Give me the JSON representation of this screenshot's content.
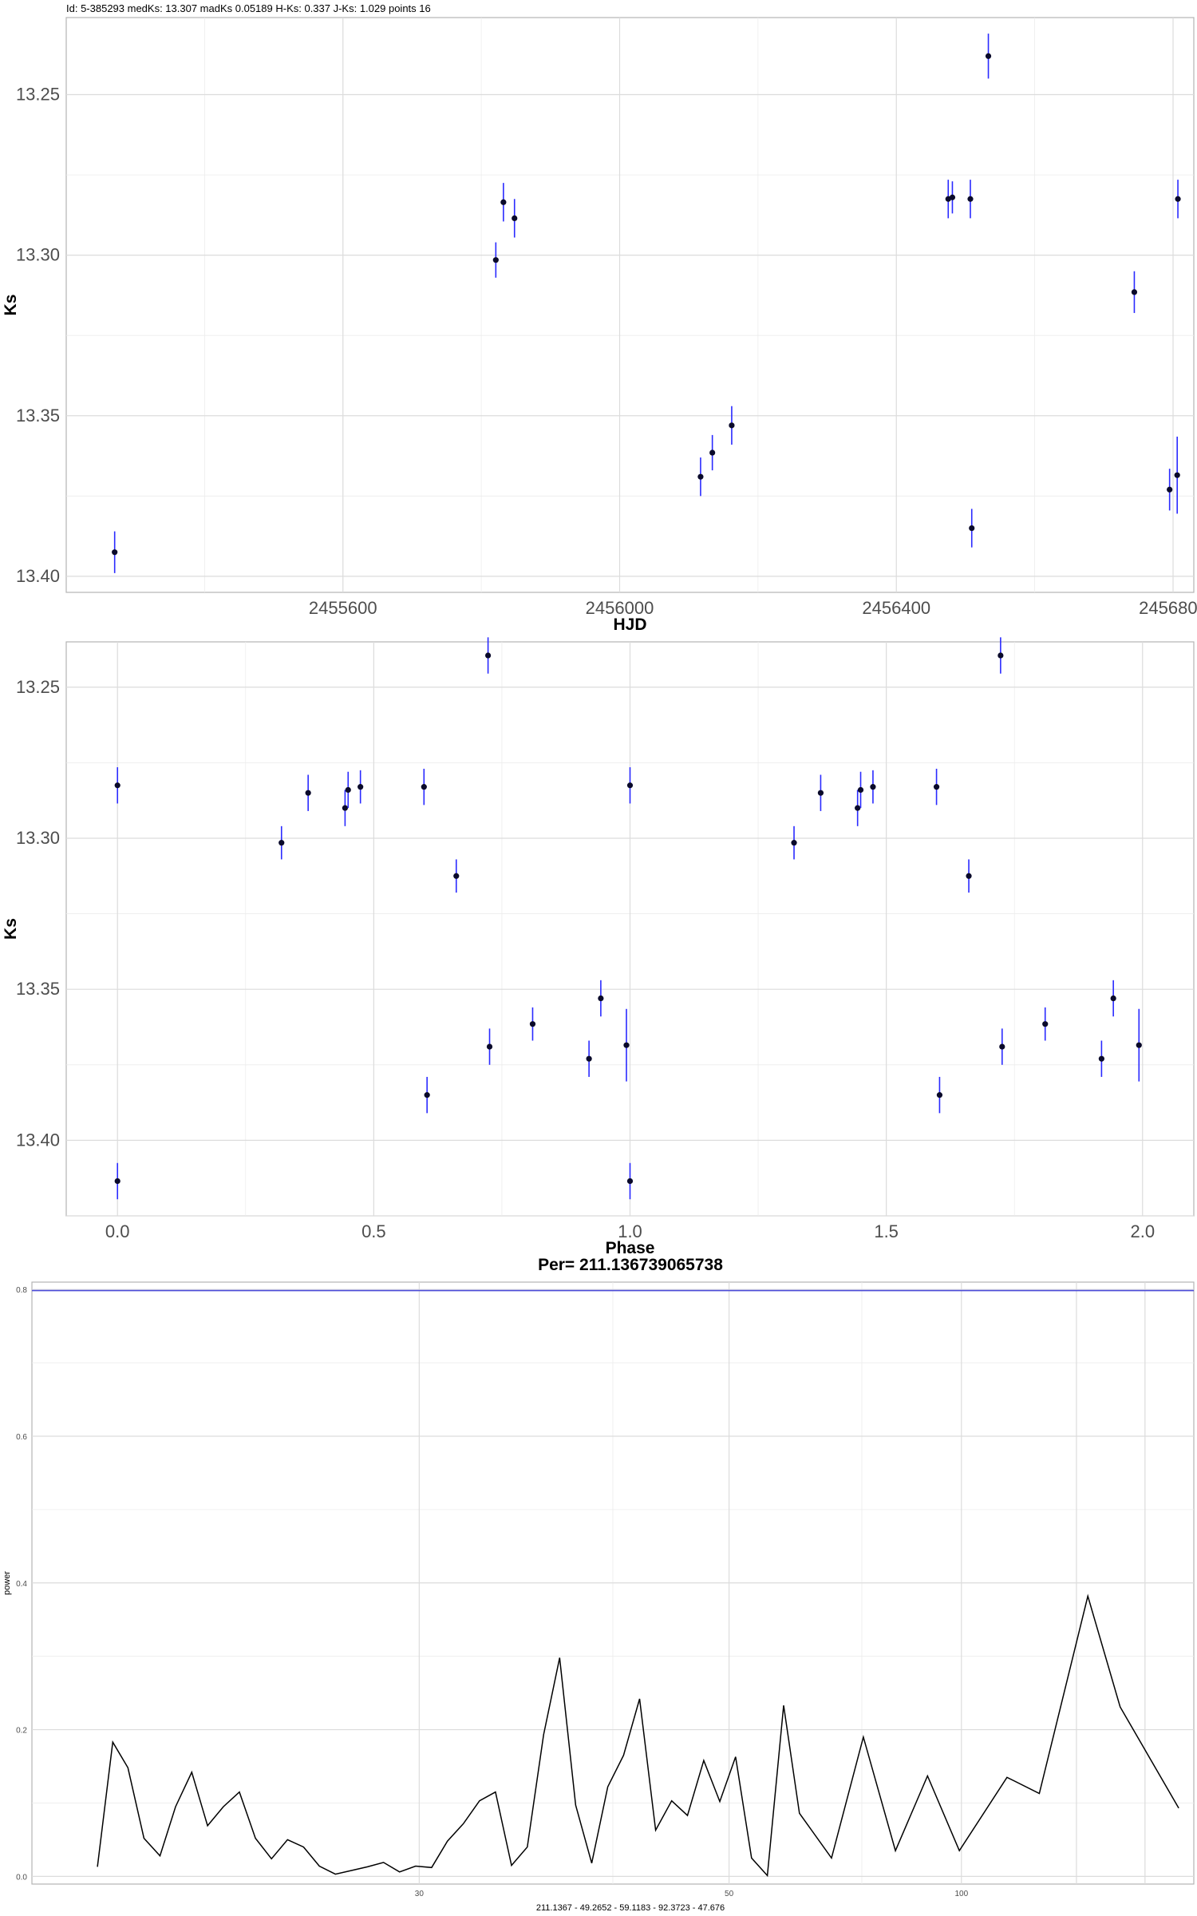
{
  "header": {
    "title": "Id: 5-385293 medKs: 13.307 madKs 0.05189 H-Ks: 0.337 J-Ks: 1.029 points 16"
  },
  "colors": {
    "errorbar": "#2a2aff",
    "point": "#0a0a2a",
    "reference_line": "#4b4bd8",
    "curve": "#000000"
  },
  "chart_data": [
    {
      "type": "scatter",
      "title": "Id: 5-385293 medKs: 13.307 madKs 0.05189 H-Ks: 0.337 J-Ks: 1.029 points 16",
      "xlabel": "HJD",
      "ylabel": "Ks",
      "y_reversed": true,
      "xlim": [
        2455200,
        2456830
      ],
      "ylim": [
        13.405,
        13.226
      ],
      "x_ticks": [
        2455600,
        2456000,
        2456400,
        2456800
      ],
      "x_tick_labels": [
        "2455600",
        "2456000",
        "2456400",
        "2456800"
      ],
      "y_ticks": [
        13.25,
        13.3,
        13.35,
        13.4
      ],
      "y_tick_labels": [
        "13.25",
        "13.30",
        "13.35",
        "13.40"
      ],
      "grid": true,
      "points": [
        {
          "x": 2455270,
          "y": 13.3925,
          "err": 0.0065
        },
        {
          "x": 2455821,
          "y": 13.3015,
          "err": 0.0055
        },
        {
          "x": 2455832,
          "y": 13.2835,
          "err": 0.006
        },
        {
          "x": 2455848,
          "y": 13.2885,
          "err": 0.006
        },
        {
          "x": 2456117,
          "y": 13.369,
          "err": 0.006
        },
        {
          "x": 2456134,
          "y": 13.3615,
          "err": 0.0055
        },
        {
          "x": 2456162,
          "y": 13.353,
          "err": 0.006
        },
        {
          "x": 2456475,
          "y": 13.2825,
          "err": 0.006
        },
        {
          "x": 2456481,
          "y": 13.282,
          "err": 0.005
        },
        {
          "x": 2456507,
          "y": 13.2825,
          "err": 0.006
        },
        {
          "x": 2456509,
          "y": 13.385,
          "err": 0.006
        },
        {
          "x": 2456533,
          "y": 13.238,
          "err": 0.007
        },
        {
          "x": 2456744,
          "y": 13.3115,
          "err": 0.0065
        },
        {
          "x": 2456795,
          "y": 13.373,
          "err": 0.0065
        },
        {
          "x": 2456806,
          "y": 13.3685,
          "err": 0.012
        },
        {
          "x": 2456807,
          "y": 13.2825,
          "err": 0.006
        }
      ]
    },
    {
      "type": "scatter",
      "xlabel": "Phase",
      "ylabel": "Ks",
      "y_reversed": true,
      "xlim": [
        -0.1,
        2.1
      ],
      "ylim": [
        13.425,
        13.235
      ],
      "x_ticks": [
        0.0,
        0.5,
        1.0,
        1.5,
        2.0
      ],
      "x_tick_labels": [
        "0.0",
        "0.5",
        "1.0",
        "1.5",
        "2.0"
      ],
      "y_ticks": [
        13.25,
        13.3,
        13.35,
        13.4
      ],
      "y_tick_labels": [
        "13.25",
        "13.30",
        "13.35",
        "13.40"
      ],
      "grid": true,
      "points": [
        {
          "x": 0.0,
          "y": 13.2825,
          "err": 0.006
        },
        {
          "x": 0.0,
          "y": 13.4135,
          "err": 0.006
        },
        {
          "x": 0.32,
          "y": 13.3015,
          "err": 0.0055
        },
        {
          "x": 0.372,
          "y": 13.285,
          "err": 0.006
        },
        {
          "x": 0.444,
          "y": 13.29,
          "err": 0.006
        },
        {
          "x": 0.45,
          "y": 13.284,
          "err": 0.006
        },
        {
          "x": 0.474,
          "y": 13.283,
          "err": 0.0055
        },
        {
          "x": 0.598,
          "y": 13.283,
          "err": 0.006
        },
        {
          "x": 0.604,
          "y": 13.385,
          "err": 0.006
        },
        {
          "x": 0.661,
          "y": 13.3125,
          "err": 0.0055
        },
        {
          "x": 0.723,
          "y": 13.2395,
          "err": 0.006
        },
        {
          "x": 0.726,
          "y": 13.369,
          "err": 0.006
        },
        {
          "x": 0.81,
          "y": 13.3615,
          "err": 0.0055
        },
        {
          "x": 0.92,
          "y": 13.373,
          "err": 0.006
        },
        {
          "x": 0.943,
          "y": 13.353,
          "err": 0.006
        },
        {
          "x": 0.993,
          "y": 13.3685,
          "err": 0.012
        },
        {
          "x": 1.0,
          "y": 13.2825,
          "err": 0.006
        },
        {
          "x": 1.0,
          "y": 13.4135,
          "err": 0.006
        },
        {
          "x": 1.32,
          "y": 13.3015,
          "err": 0.0055
        },
        {
          "x": 1.372,
          "y": 13.285,
          "err": 0.006
        },
        {
          "x": 1.444,
          "y": 13.29,
          "err": 0.006
        },
        {
          "x": 1.45,
          "y": 13.284,
          "err": 0.006
        },
        {
          "x": 1.474,
          "y": 13.283,
          "err": 0.0055
        },
        {
          "x": 1.598,
          "y": 13.283,
          "err": 0.006
        },
        {
          "x": 1.604,
          "y": 13.385,
          "err": 0.006
        },
        {
          "x": 1.661,
          "y": 13.3125,
          "err": 0.0055
        },
        {
          "x": 1.723,
          "y": 13.2395,
          "err": 0.006
        },
        {
          "x": 1.726,
          "y": 13.369,
          "err": 0.006
        },
        {
          "x": 1.81,
          "y": 13.3615,
          "err": 0.0055
        },
        {
          "x": 1.92,
          "y": 13.373,
          "err": 0.006
        },
        {
          "x": 1.943,
          "y": 13.353,
          "err": 0.006
        },
        {
          "x": 1.993,
          "y": 13.3685,
          "err": 0.012
        }
      ]
    },
    {
      "type": "line",
      "title": "Per= 211.136739065738",
      "subtitle": "211.1367 - 49.2652 - 59.1183 - 92.3723 - 47.676",
      "xlabel": "",
      "ylabel": "power",
      "x_scale": "reciprocal",
      "x_domain_freq": [
        0.0,
        0.05
      ],
      "ylim": [
        -0.0105,
        0.81
      ],
      "x_ticks": [
        30,
        50,
        100
      ],
      "x_tick_labels": [
        "30",
        "50",
        "100"
      ],
      "y_ticks": [
        0.0,
        0.2,
        0.4,
        0.6,
        0.8
      ],
      "y_tick_labels": [
        "0.0",
        "0.2",
        "0.4",
        "0.6",
        "0.8"
      ],
      "grid": true,
      "reference_line": {
        "y": 0.7985
      },
      "series": [
        {
          "freq": [
            0.04718,
            0.04652,
            0.04587,
            0.04518,
            0.04449,
            0.04382,
            0.04312,
            0.04244,
            0.04176,
            0.04107,
            0.04038,
            0.03969,
            0.039,
            0.03831,
            0.03763,
            0.03694,
            0.03625,
            0.03556,
            0.03487,
            0.03418,
            0.03349,
            0.0328,
            0.03212,
            0.03143,
            0.03074,
            0.03005,
            0.02936,
            0.02868,
            0.02798,
            0.02729,
            0.0266,
            0.02591,
            0.02522,
            0.02454,
            0.02385,
            0.02316,
            0.02247,
            0.02179,
            0.02109,
            0.0204,
            0.01972,
            0.01903,
            0.01835,
            0.01765,
            0.01697,
            0.01559,
            0.01422,
            0.01284,
            0.01146,
            0.01009,
            0.00804,
            0.00665,
            0.00456,
            0.00317,
            0.00065
          ],
          "power": [
            0.013,
            0.183,
            0.148,
            0.052,
            0.028,
            0.095,
            0.142,
            0.069,
            0.095,
            0.115,
            0.052,
            0.024,
            0.05,
            0.04,
            0.014,
            0.003,
            0.008,
            0.013,
            0.019,
            0.006,
            0.014,
            0.012,
            0.048,
            0.072,
            0.103,
            0.115,
            0.015,
            0.04,
            0.193,
            0.298,
            0.097,
            0.018,
            0.122,
            0.165,
            0.242,
            0.063,
            0.103,
            0.083,
            0.158,
            0.102,
            0.163,
            0.025,
            0.001,
            0.233,
            0.086,
            0.025,
            0.19,
            0.035,
            0.137,
            0.035,
            0.135,
            0.113,
            0.382,
            0.231,
            0.093
          ]
        }
      ]
    }
  ]
}
